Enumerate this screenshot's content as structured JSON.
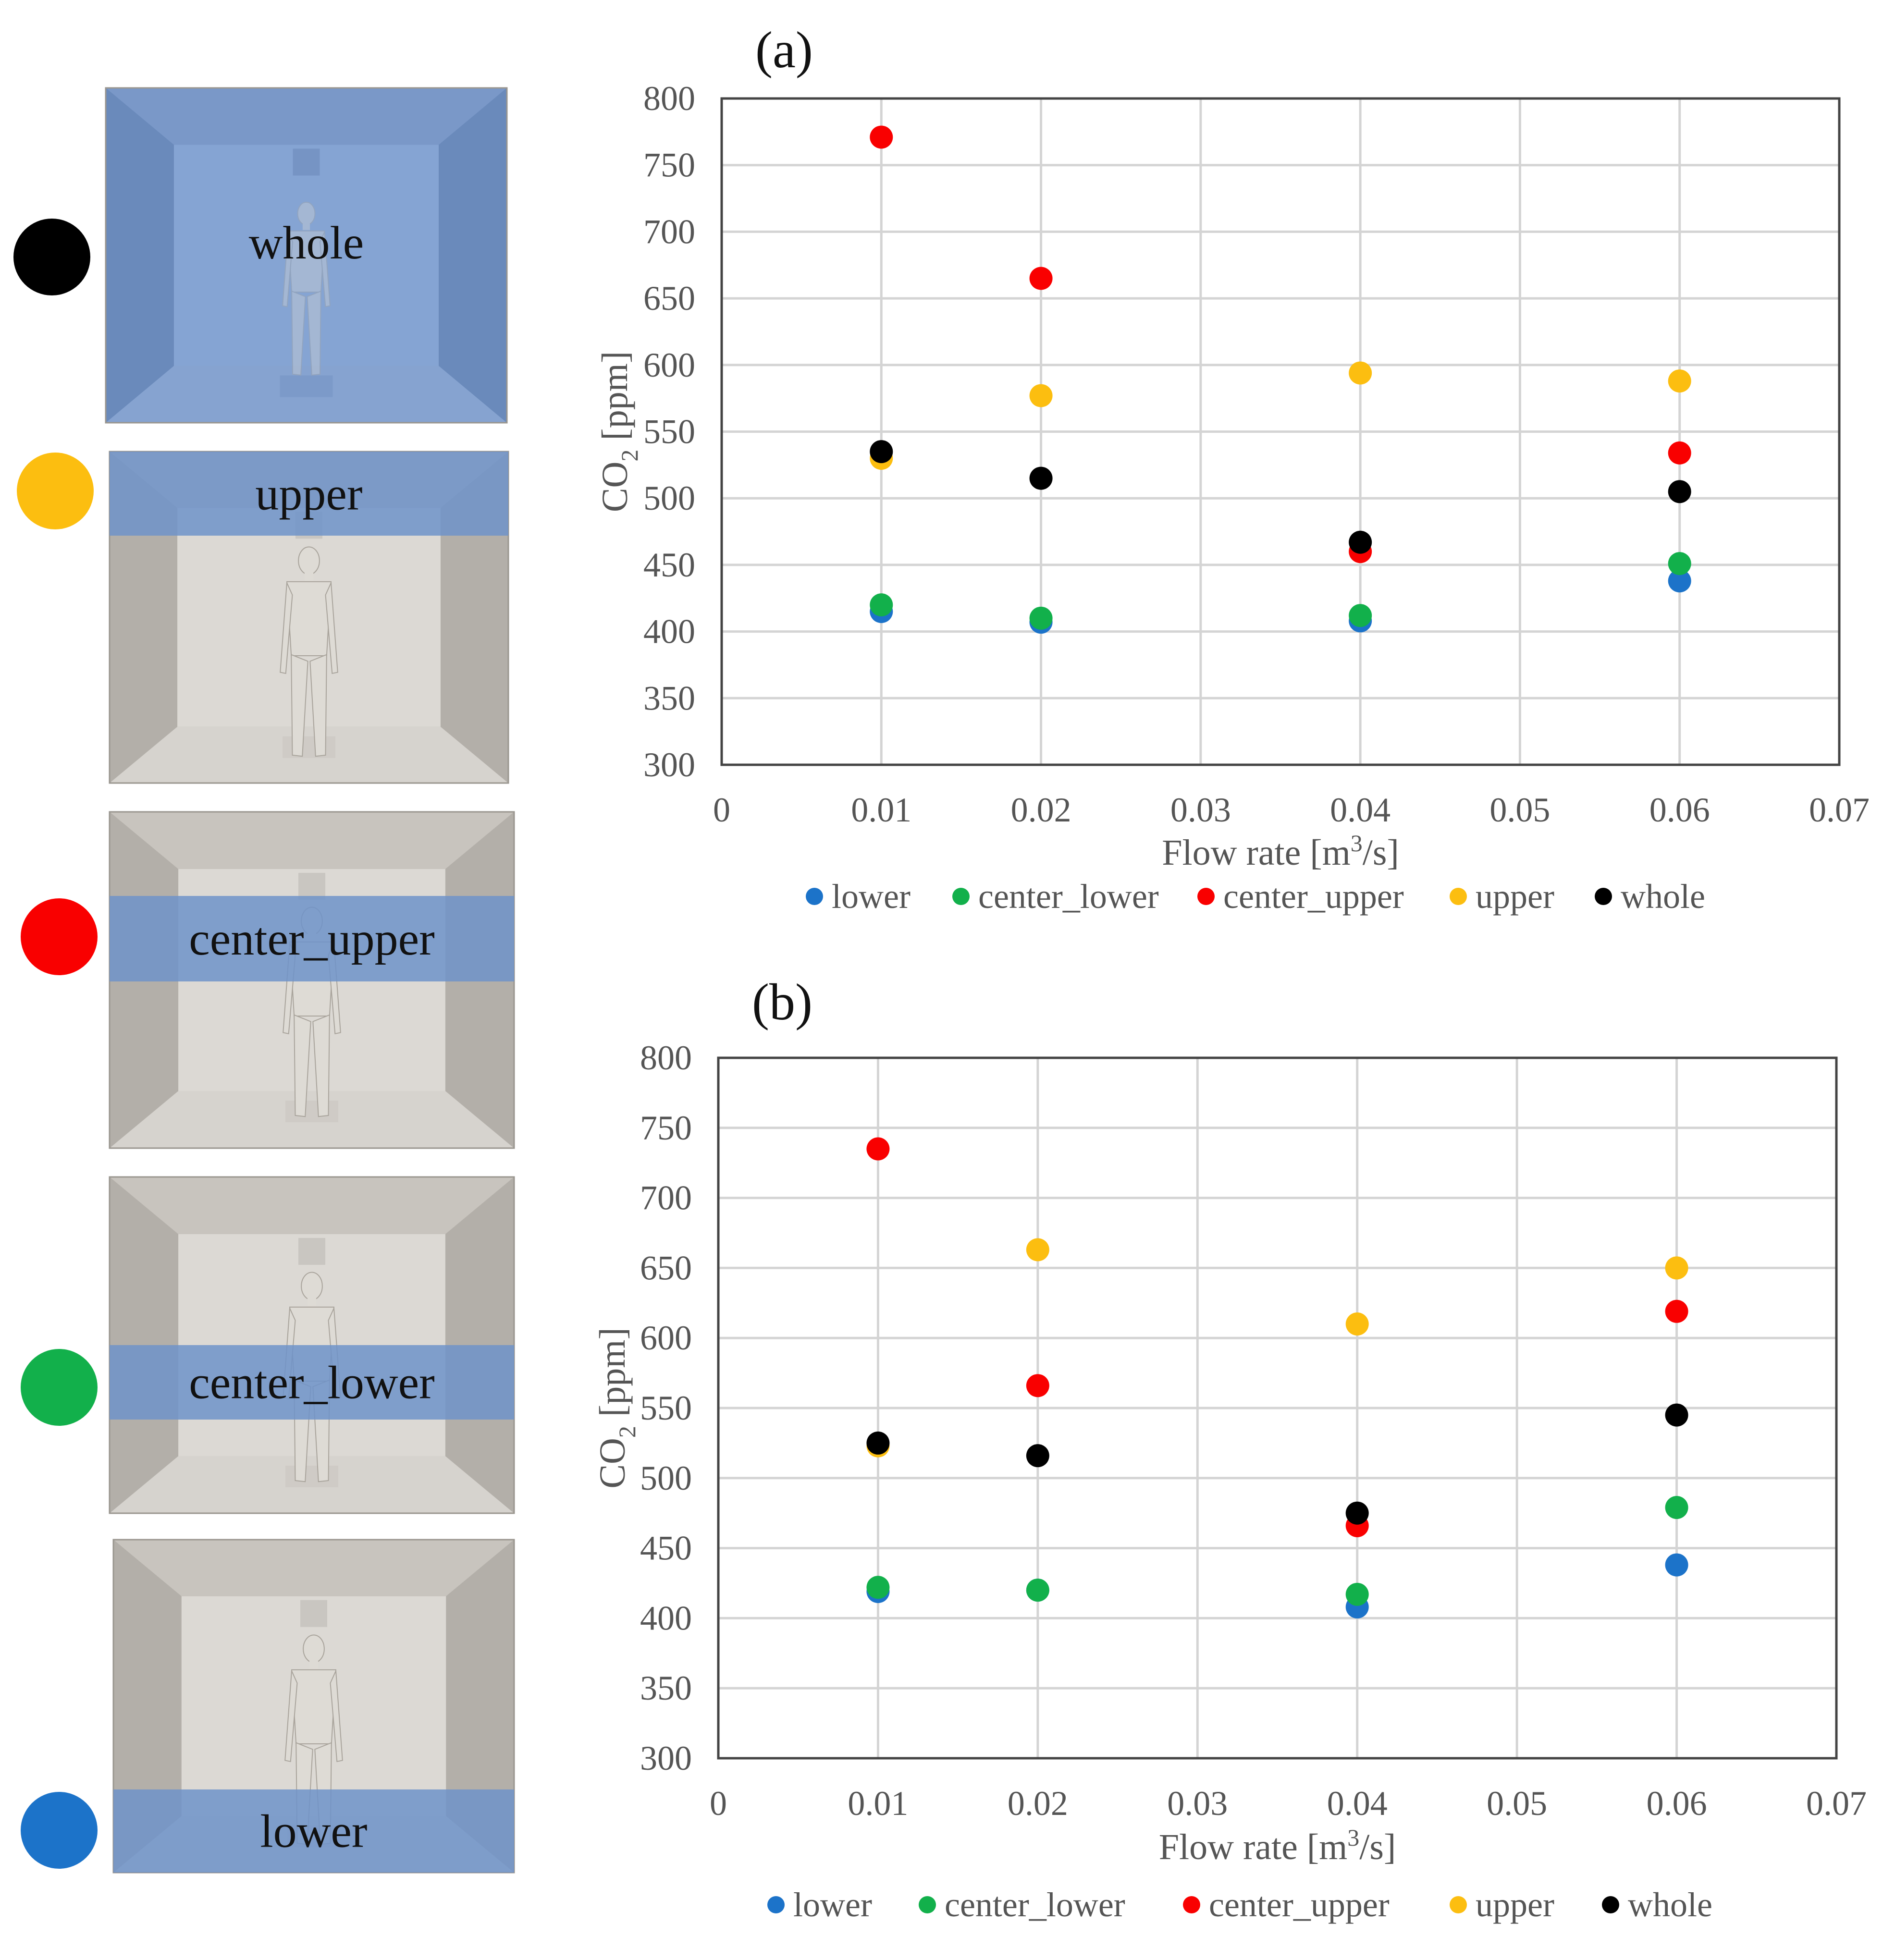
{
  "colors": {
    "lower": "#1c73c9",
    "center_lower": "#12b04b",
    "center_upper": "#f90000",
    "upper": "#fcbe10",
    "whole": "#000000",
    "zone_blue": "#6f93c9",
    "room_gray": "#c9c5be"
  },
  "zones": [
    {
      "key": "whole",
      "label": "whole",
      "color": "#000000"
    },
    {
      "key": "upper",
      "label": "upper",
      "color": "#fcbe10"
    },
    {
      "key": "center_upper",
      "label": "center_upper",
      "color": "#f90000"
    },
    {
      "key": "center_lower",
      "label": "center_lower",
      "color": "#12b04b"
    },
    {
      "key": "lower",
      "label": "lower",
      "color": "#1c73c9"
    }
  ],
  "chart_data": [
    {
      "type": "scatter",
      "panel_label": "(a)",
      "xlabel_main": "Flow rate [m",
      "xlabel_sup": "3",
      "xlabel_end": "/s]",
      "ylabel_main": "CO",
      "ylabel_sub": "2",
      "ylabel_end": " [ppm]",
      "xlim": [
        0,
        0.07
      ],
      "ylim": [
        300,
        800
      ],
      "xticks": [
        "0",
        "0.01",
        "0.02",
        "0.03",
        "0.04",
        "0.05",
        "0.06",
        "0.07"
      ],
      "yticks": [
        "300",
        "350",
        "400",
        "450",
        "500",
        "550",
        "600",
        "650",
        "700",
        "750",
        "800"
      ],
      "grid": true,
      "legend": "bottom",
      "x": [
        0.01,
        0.02,
        0.04,
        0.06
      ],
      "series": [
        {
          "name": "lower",
          "values": [
            415,
            407,
            408,
            438
          ]
        },
        {
          "name": "center_lower",
          "values": [
            420,
            410,
            412,
            451
          ]
        },
        {
          "name": "center_upper",
          "values": [
            771,
            665,
            460,
            534
          ]
        },
        {
          "name": "upper",
          "values": [
            530,
            577,
            594,
            588
          ]
        },
        {
          "name": "whole",
          "values": [
            535,
            515,
            467,
            505
          ]
        }
      ]
    },
    {
      "type": "scatter",
      "panel_label": "(b)",
      "xlabel_main": "Flow rate [m",
      "xlabel_sup": "3",
      "xlabel_end": "/s]",
      "ylabel_main": "CO",
      "ylabel_sub": "2",
      "ylabel_end": " [ppm]",
      "xlim": [
        0,
        0.07
      ],
      "ylim": [
        300,
        800
      ],
      "xticks": [
        "0",
        "0.01",
        "0.02",
        "0.03",
        "0.04",
        "0.05",
        "0.06",
        "0.07"
      ],
      "yticks": [
        "300",
        "350",
        "400",
        "450",
        "500",
        "550",
        "600",
        "650",
        "700",
        "750",
        "800"
      ],
      "grid": true,
      "legend": "bottom",
      "x": [
        0.01,
        0.02,
        0.04,
        0.06
      ],
      "series": [
        {
          "name": "lower",
          "values": [
            419,
            420,
            408,
            438
          ]
        },
        {
          "name": "center_lower",
          "values": [
            422,
            420,
            417,
            479
          ]
        },
        {
          "name": "center_upper",
          "values": [
            735,
            566,
            466,
            619
          ]
        },
        {
          "name": "upper",
          "values": [
            523,
            663,
            610,
            650
          ]
        },
        {
          "name": "whole",
          "values": [
            525,
            516,
            475,
            545
          ]
        }
      ]
    }
  ]
}
